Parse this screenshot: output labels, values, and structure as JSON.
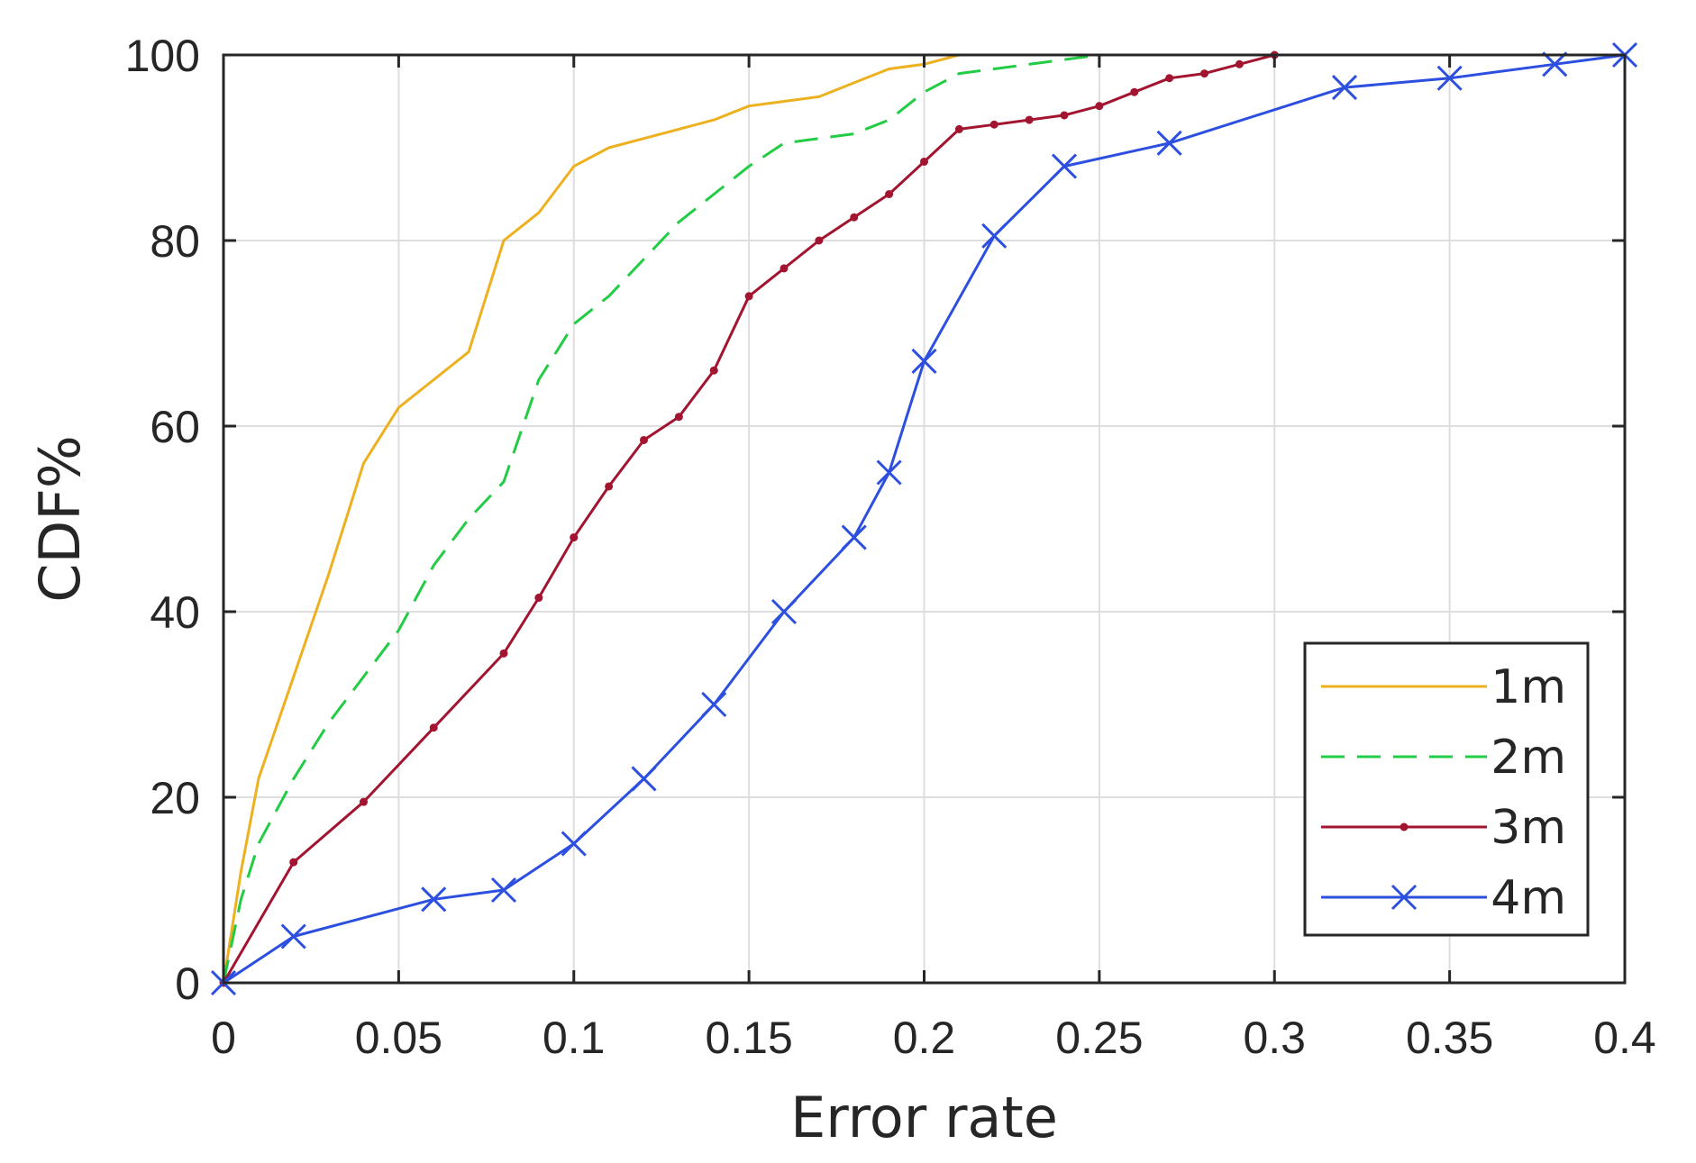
{
  "chart_data": {
    "type": "line",
    "xlabel": "Error rate",
    "ylabel": "CDF%",
    "xlim": [
      0,
      0.4
    ],
    "ylim": [
      0,
      100
    ],
    "xticks": [
      0,
      0.05,
      0.1,
      0.15,
      0.2,
      0.25,
      0.3,
      0.35,
      0.4
    ],
    "xtick_labels": [
      "0",
      "0.05",
      "0.1",
      "0.15",
      "0.2",
      "0.25",
      "0.3",
      "0.35",
      "0.4"
    ],
    "yticks": [
      0,
      20,
      40,
      60,
      80,
      100
    ],
    "ytick_labels": [
      "0",
      "20",
      "40",
      "60",
      "80",
      "100"
    ],
    "grid": true,
    "legend_position": "bottom-right",
    "series": [
      {
        "name": "1m",
        "color": "#EDB120",
        "line_style": "solid",
        "marker": "none",
        "x": [
          0,
          0.005,
          0.01,
          0.02,
          0.03,
          0.04,
          0.05,
          0.06,
          0.07,
          0.08,
          0.09,
          0.1,
          0.11,
          0.12,
          0.13,
          0.14,
          0.15,
          0.16,
          0.17,
          0.18,
          0.19,
          0.2,
          0.21
        ],
        "y": [
          0,
          12,
          22,
          33,
          44,
          56,
          62,
          65,
          68,
          80,
          83,
          88,
          90,
          91,
          92,
          93,
          94.5,
          95,
          95.5,
          97,
          98.5,
          99,
          100
        ]
      },
      {
        "name": "2m",
        "color": "#22CC44",
        "line_style": "dashed",
        "marker": "none",
        "x": [
          0,
          0.005,
          0.01,
          0.02,
          0.03,
          0.04,
          0.05,
          0.06,
          0.07,
          0.08,
          0.09,
          0.1,
          0.11,
          0.12,
          0.13,
          0.14,
          0.15,
          0.16,
          0.17,
          0.18,
          0.19,
          0.2,
          0.21,
          0.22,
          0.23,
          0.24,
          0.25
        ],
        "y": [
          0,
          9,
          15,
          22,
          28,
          33,
          38,
          45,
          50,
          54,
          65,
          71,
          74,
          78,
          82,
          85,
          88,
          90.5,
          91,
          91.5,
          93,
          96,
          98,
          98.5,
          99,
          99.5,
          100
        ]
      },
      {
        "name": "3m",
        "color": "#A2142F",
        "line_style": "solid",
        "marker": "point",
        "x": [
          0,
          0.02,
          0.04,
          0.06,
          0.08,
          0.09,
          0.1,
          0.11,
          0.12,
          0.13,
          0.14,
          0.15,
          0.16,
          0.17,
          0.18,
          0.19,
          0.2,
          0.21,
          0.22,
          0.23,
          0.24,
          0.25,
          0.26,
          0.27,
          0.28,
          0.29,
          0.3
        ],
        "y": [
          0,
          13,
          19.5,
          27.5,
          35.5,
          41.5,
          48,
          53.5,
          58.5,
          61,
          66,
          74,
          77,
          80,
          82.5,
          85,
          88.5,
          92,
          92.5,
          93,
          93.5,
          94.5,
          96,
          97.5,
          98,
          99,
          100
        ]
      },
      {
        "name": "4m",
        "color": "#2C4FE0",
        "line_style": "solid",
        "marker": "x",
        "x": [
          0,
          0.02,
          0.06,
          0.08,
          0.1,
          0.12,
          0.14,
          0.16,
          0.18,
          0.19,
          0.2,
          0.22,
          0.24,
          0.27,
          0.32,
          0.35,
          0.38,
          0.4
        ],
        "y": [
          0,
          5,
          9,
          10,
          15,
          22,
          30,
          40,
          48,
          55,
          67,
          80.5,
          88,
          90.5,
          96.5,
          97.5,
          99,
          100
        ]
      }
    ]
  }
}
